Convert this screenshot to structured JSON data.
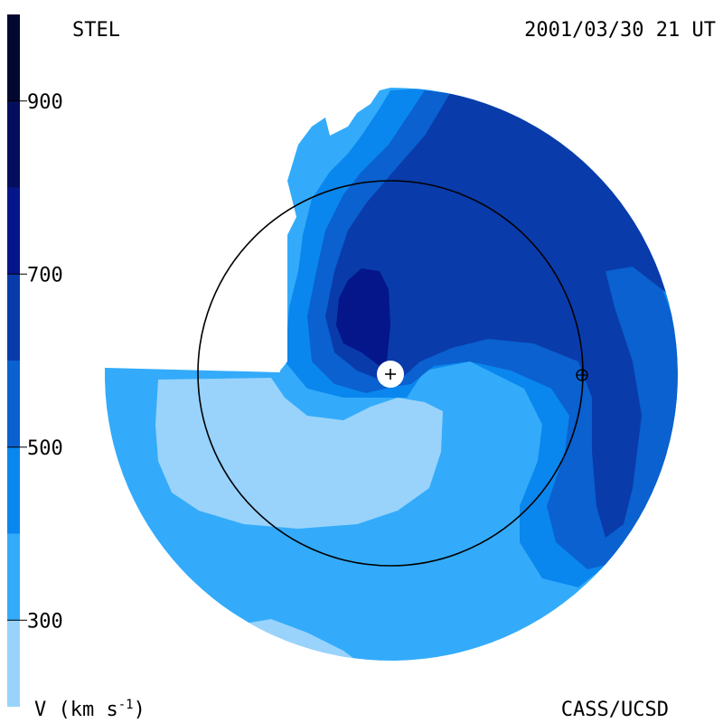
{
  "header": {
    "left_label": "STEL",
    "right_label": "2001/03/30 21 UT"
  },
  "footer": {
    "left_label": "V (km s",
    "left_label_sup": "-1",
    "left_label_close": ")",
    "right_label": "CASS/UCSD"
  },
  "chart_data": {
    "type": "heatmap",
    "projection": "polar ecliptic view",
    "colorbar": {
      "label": "V (km s-1)",
      "range": [
        200,
        1000
      ],
      "ticks": [
        900,
        700,
        500,
        300
      ],
      "levels": [
        {
          "from": 200,
          "to": 300,
          "color": "#99D3FB"
        },
        {
          "from": 300,
          "to": 400,
          "color": "#33ABFA"
        },
        {
          "from": 400,
          "to": 500,
          "color": "#0A87EE"
        },
        {
          "from": 500,
          "to": 600,
          "color": "#0A61CF"
        },
        {
          "from": 600,
          "to": 700,
          "color": "#0A3BAB"
        },
        {
          "from": 700,
          "to": 800,
          "color": "#04168A"
        },
        {
          "from": 800,
          "to": 900,
          "color": "#040E5C"
        },
        {
          "from": 900,
          "to": 1000,
          "color": "#030830"
        }
      ]
    },
    "markers": [
      {
        "name": "Sun",
        "symbol": "+"
      },
      {
        "name": "Earth",
        "symbol": "⊕"
      }
    ],
    "orbit_circle": "Earth orbit (1 AU)"
  }
}
